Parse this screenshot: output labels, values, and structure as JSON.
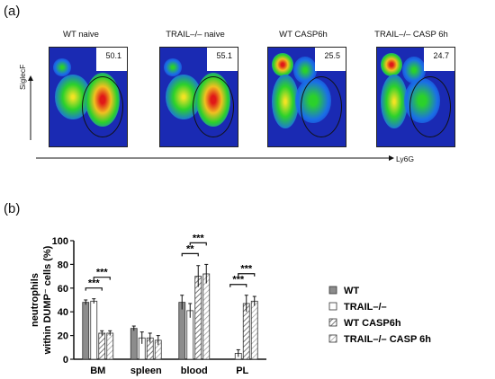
{
  "panel_a": {
    "label": "(a)",
    "y_axis_label": "SiglecF",
    "x_axis_label": "Ly6G",
    "plots": [
      {
        "title": "WT naive",
        "gate_percent": "50.1"
      },
      {
        "title": "TRAIL–/– naive",
        "gate_percent": "55.1"
      },
      {
        "title": "WT CASP6h",
        "gate_percent": "25.5"
      },
      {
        "title": "TRAIL–/– CASP 6h",
        "gate_percent": "24.7"
      }
    ]
  },
  "panel_b": {
    "label": "(b)"
  },
  "chart_data": {
    "type": "bar",
    "ylabel": "neutrophils\nwithin DUMP⁻ cells (%)",
    "ylim": [
      0,
      100
    ],
    "yticks": [
      0,
      20,
      40,
      60,
      80,
      100
    ],
    "categories": [
      "BM",
      "spleen",
      "blood",
      "PL"
    ],
    "series": [
      {
        "name": "WT",
        "values": [
          48,
          26,
          48,
          0
        ],
        "errors": [
          2,
          2,
          6,
          0
        ]
      },
      {
        "name": "TRAIL–/–",
        "values": [
          49,
          18,
          41,
          5
        ],
        "errors": [
          2,
          5,
          6,
          3
        ]
      },
      {
        "name": "WT CASP6h",
        "values": [
          22,
          18,
          70,
          47
        ],
        "errors": [
          2,
          4,
          9,
          7
        ]
      },
      {
        "name": "TRAIL–/– CASP 6h",
        "values": [
          22,
          16,
          72,
          49
        ],
        "errors": [
          2,
          4,
          8,
          4
        ]
      }
    ],
    "significance": [
      {
        "category": "BM",
        "from_series": 0,
        "to_series": 2,
        "label": "***"
      },
      {
        "category": "BM",
        "from_series": 1,
        "to_series": 3,
        "label": "***"
      },
      {
        "category": "blood",
        "from_series": 0,
        "to_series": 2,
        "label": "**"
      },
      {
        "category": "blood",
        "from_series": 1,
        "to_series": 3,
        "label": "***"
      },
      {
        "category": "PL",
        "from_series": 0,
        "to_series": 2,
        "label": "***"
      },
      {
        "category": "PL",
        "from_series": 1,
        "to_series": 3,
        "label": "***"
      }
    ],
    "legend_position": "right",
    "colors": {
      "WT": "#8c8c8c",
      "TRAIL": "#ffffff",
      "hatch": "#7a7a7a"
    }
  }
}
